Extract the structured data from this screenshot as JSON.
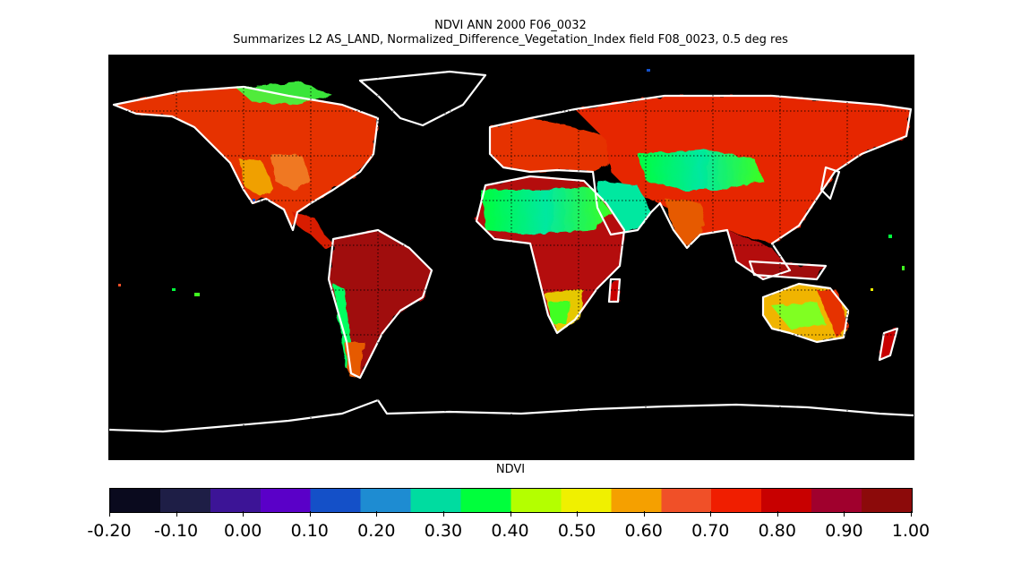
{
  "title": "NDVI ANN 2000 F06_0032",
  "subtitle": "Summarizes L2 AS_LAND, Normalized_Difference_Vegetation_Index field F08_0023, 0.5 deg res",
  "colorbar": {
    "label": "NDVI",
    "ticks": [
      "-0.20",
      "-0.10",
      "0.00",
      "0.10",
      "0.20",
      "0.30",
      "0.40",
      "0.50",
      "0.60",
      "0.70",
      "0.80",
      "0.90",
      "1.00"
    ],
    "range": [
      -0.2,
      1.0
    ],
    "colors": [
      "#0a0a1e",
      "#1e1e46",
      "#3c1496",
      "#5a00c8",
      "#1450c8",
      "#1e8cd2",
      "#00dca0",
      "#00ff3c",
      "#b4ff00",
      "#f0f000",
      "#f5a000",
      "#f05028",
      "#f01e00",
      "#c80000",
      "#a0002d",
      "#8c0a0a"
    ]
  },
  "map": {
    "background": "#000000",
    "coastline_color": "#ffffff",
    "grid_lines": "dotted"
  }
}
